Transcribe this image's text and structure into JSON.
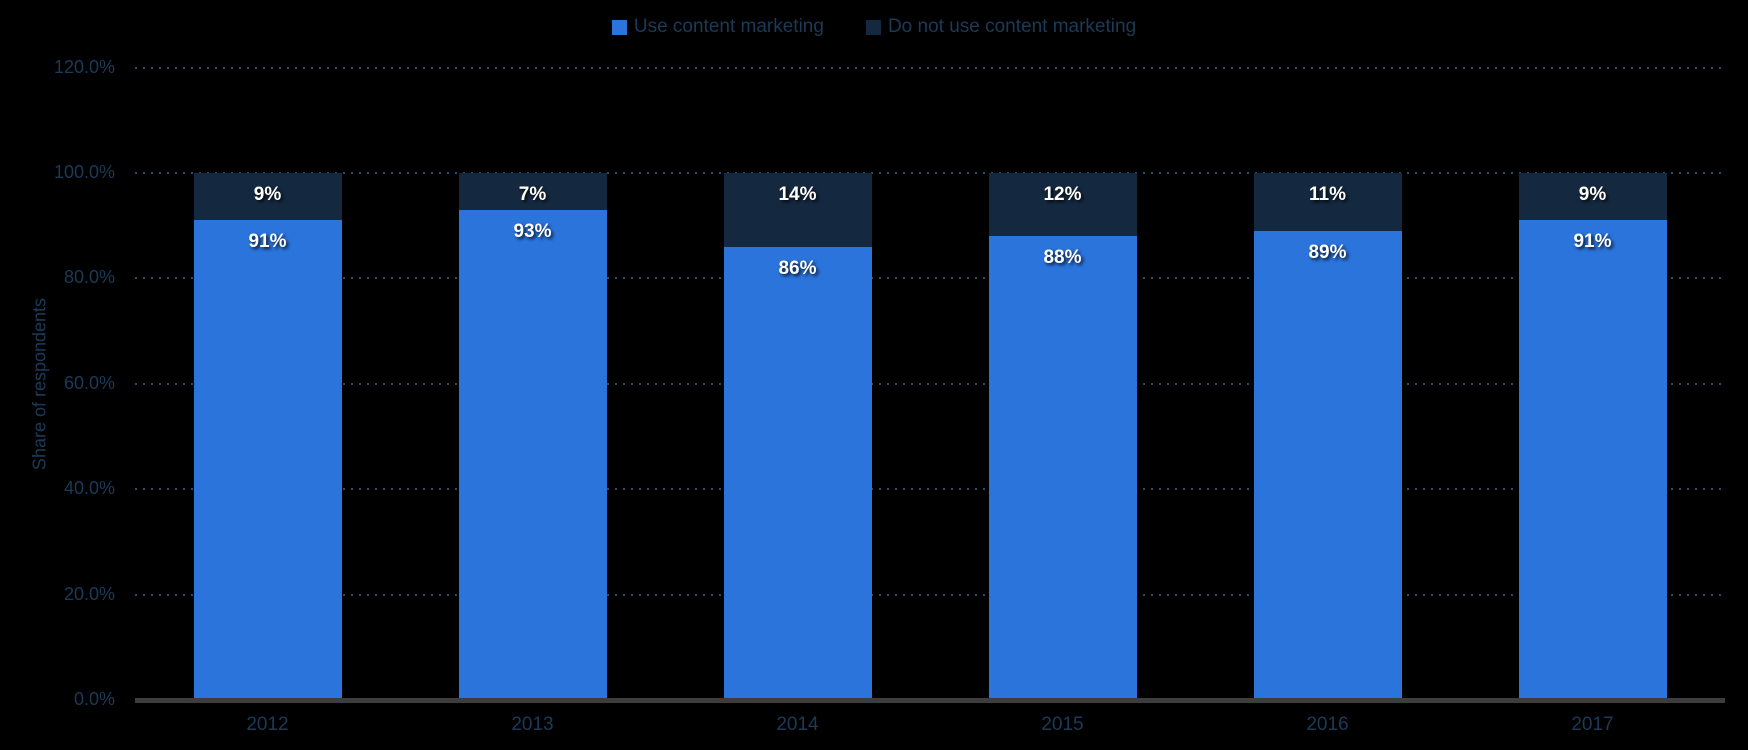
{
  "chart_data": {
    "type": "bar",
    "stacked": true,
    "title": "",
    "categories": [
      "2012",
      "2013",
      "2014",
      "2015",
      "2016",
      "2017"
    ],
    "series": [
      {
        "name": "Use content marketing",
        "color": "#2a74dc",
        "values": [
          91,
          93,
          86,
          88,
          89,
          91
        ],
        "labels": [
          "91%",
          "93%",
          "86%",
          "88%",
          "89%",
          "91%"
        ]
      },
      {
        "name": "Do not use content marketing",
        "color": "#142940",
        "values": [
          9,
          7,
          14,
          12,
          11,
          9
        ],
        "labels": [
          "9%",
          "7%",
          "14%",
          "12%",
          "11%",
          "9%"
        ]
      }
    ],
    "xlabel": "",
    "ylabel": "Share of respondents",
    "ylim": [
      0,
      120
    ],
    "yticks": [
      "0.0%",
      "20.0%",
      "40.0%",
      "60.0%",
      "80.0%",
      "100.0%",
      "120.0%"
    ],
    "ytick_values": [
      0,
      20,
      40,
      60,
      80,
      100,
      120
    ],
    "grid": "horizontal-dotted",
    "legend_position": "top-center"
  },
  "colors": {
    "background": "#000000",
    "axis_text": "#1c3a58",
    "gridline": "#2a4d72",
    "axis_line": "#3d3d3d",
    "bar_label": "#ffffff"
  }
}
